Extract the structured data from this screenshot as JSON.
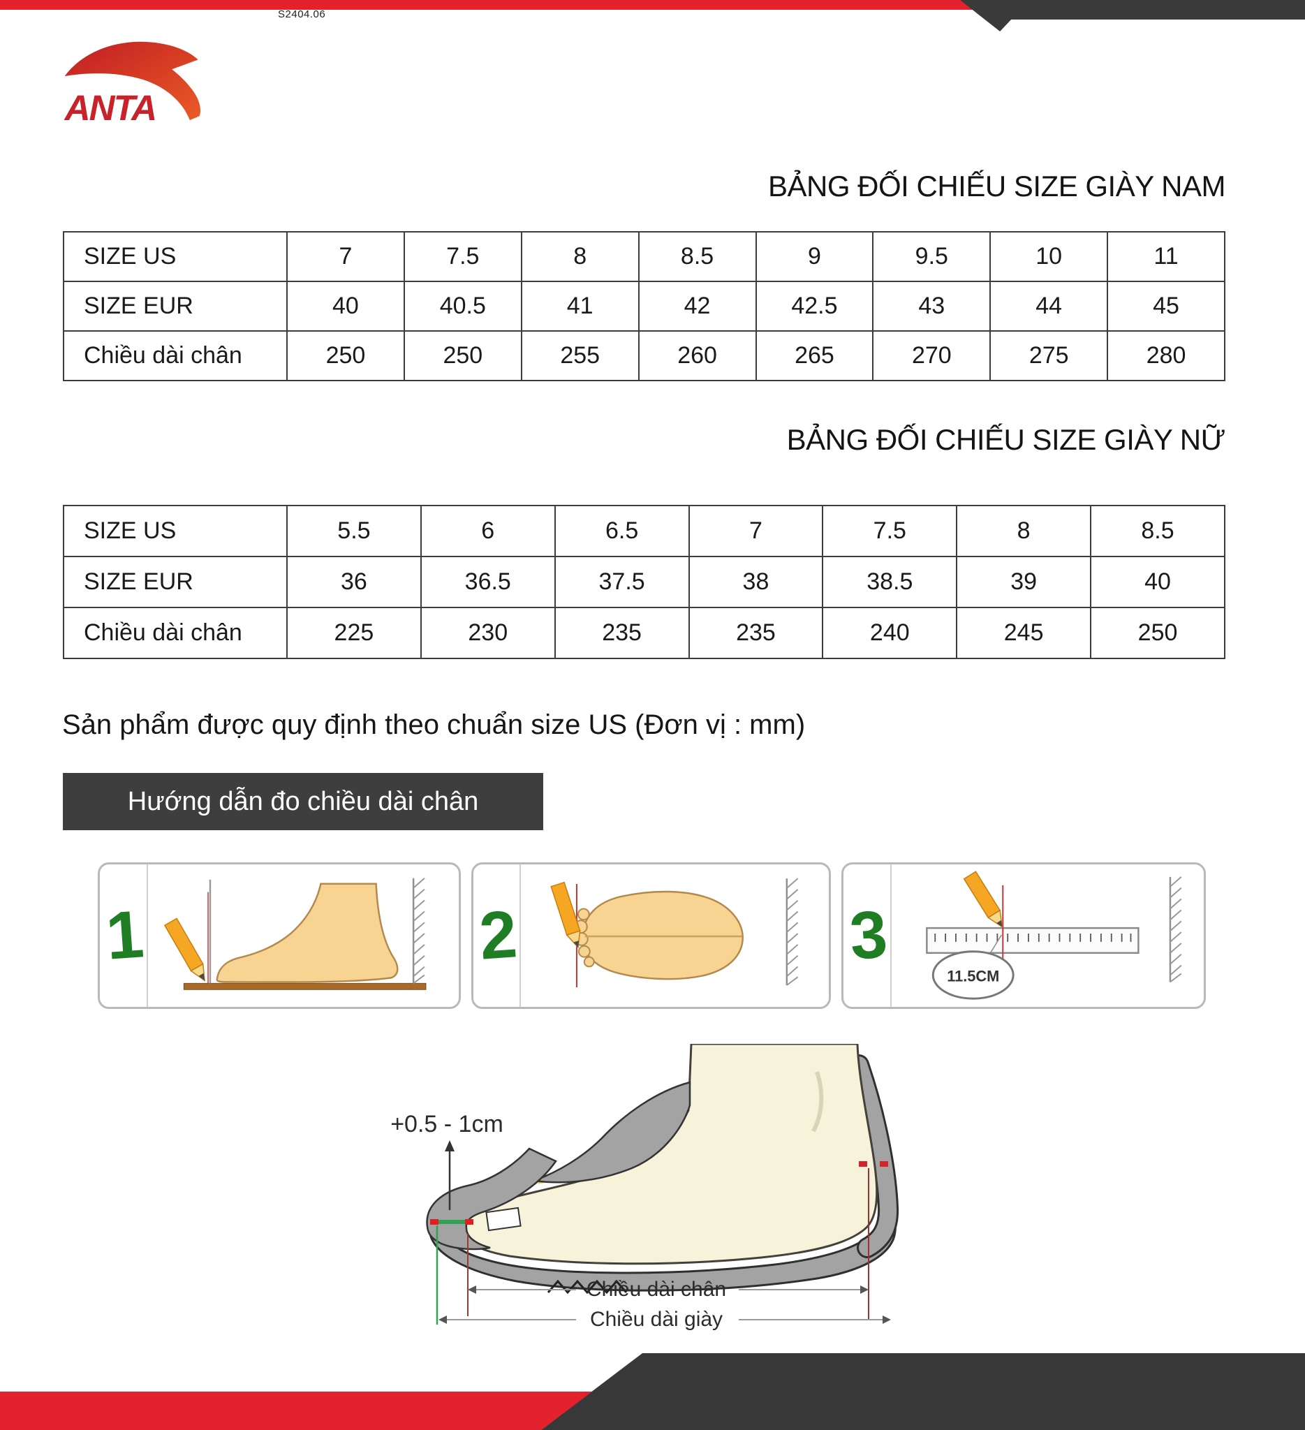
{
  "page": {
    "code": "S2404.06"
  },
  "brand": {
    "name": "ANTA"
  },
  "colors": {
    "red": "#e4222e",
    "dark": "#3a3a3a",
    "green_step": "#1f7d23",
    "table_border": "#3c3c3c",
    "pencil_orange": "#f5a623",
    "foot_tan": "#f7d491",
    "shoe_gray": "#a3a3a3"
  },
  "men_table": {
    "title": "BẢNG ĐỐI CHIẾU SIZE GIÀY NAM",
    "rows": [
      {
        "label": "SIZE US",
        "values": [
          "7",
          "7.5",
          "8",
          "8.5",
          "9",
          "9.5",
          "10",
          "11"
        ]
      },
      {
        "label": "SIZE EUR",
        "values": [
          "40",
          "40.5",
          "41",
          "42",
          "42.5",
          "43",
          "44",
          "45"
        ]
      },
      {
        "label": "Chiều dài chân",
        "values": [
          "250",
          "250",
          "255",
          "260",
          "265",
          "270",
          "275",
          "280"
        ]
      }
    ]
  },
  "women_table": {
    "title": "BẢNG ĐỐI CHIẾU SIZE GIÀY NỮ",
    "rows": [
      {
        "label": "SIZE US",
        "values": [
          "5.5",
          "6",
          "6.5",
          "7",
          "7.5",
          "8",
          "8.5"
        ]
      },
      {
        "label": "SIZE EUR",
        "values": [
          "36",
          "36.5",
          "37.5",
          "38",
          "38.5",
          "39",
          "40"
        ]
      },
      {
        "label": "Chiều dài chân",
        "values": [
          "225",
          "230",
          "235",
          "235",
          "240",
          "245",
          "250"
        ]
      }
    ]
  },
  "note": {
    "text": "Sản phẩm được quy định theo chuẩn size US (Đơn vị : mm)"
  },
  "guide": {
    "banner": "Hướng dẫn đo chiều dài chân",
    "steps": [
      {
        "number": "1"
      },
      {
        "number": "2"
      },
      {
        "number": "3"
      }
    ],
    "ruler_circle_label": "11.5CM"
  },
  "diagram": {
    "allowance_label": "+0.5 - 1cm",
    "foot_length_label": "Chiều dài chân",
    "shoe_length_label": "Chiều dài giày"
  }
}
